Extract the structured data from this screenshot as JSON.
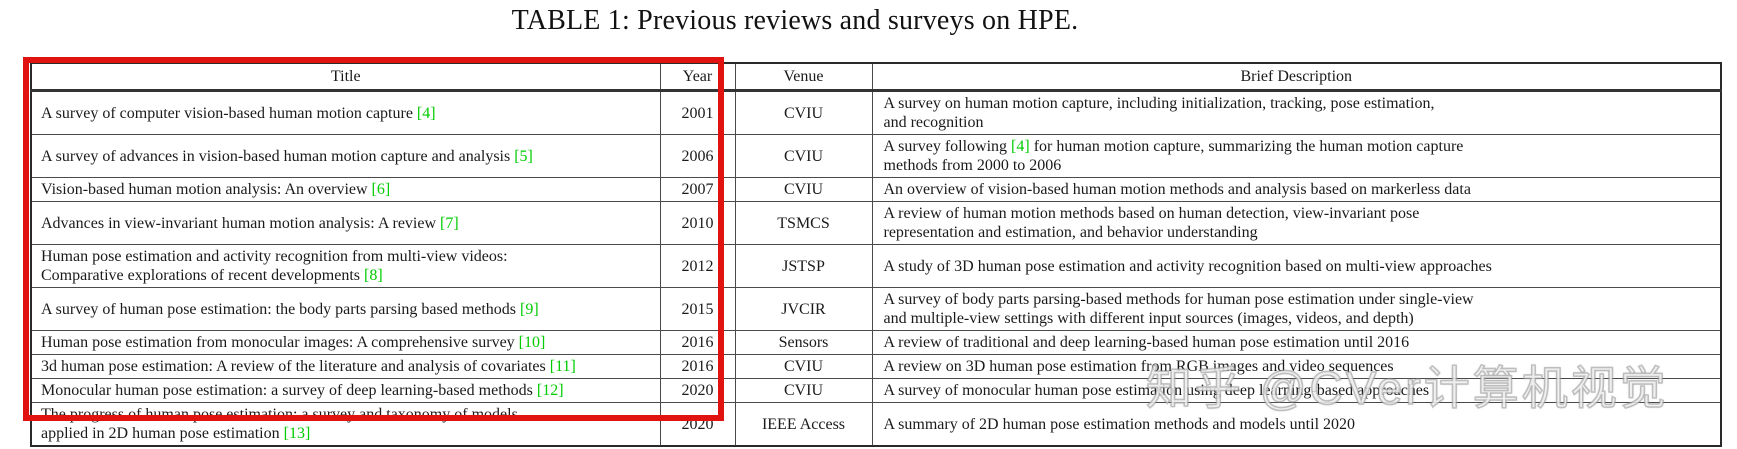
{
  "page": {
    "caption": "TABLE 1: Previous reviews and surveys on HPE.",
    "watermark": "知乎 @CVer计算机视觉"
  },
  "colors": {
    "highlight_box": "#e01310",
    "citation_green": "#00cc00"
  },
  "table": {
    "columns": [
      "Title",
      "Year",
      "Venue",
      "Brief Description"
    ],
    "rows": [
      {
        "title": "A survey of computer vision-based human motion capture [4]",
        "year": "2001",
        "venue": "CVIU",
        "description": "A survey on human motion capture, including initialization, tracking, pose estimation,\nand recognition"
      },
      {
        "title": "A survey of advances in vision-based human motion capture and analysis [5]",
        "year": "2006",
        "venue": "CVIU",
        "description": "A survey following [4] for human motion capture, summarizing the human motion capture\nmethods from 2000 to 2006"
      },
      {
        "title": "Vision-based human motion analysis: An overview [6]",
        "year": "2007",
        "venue": "CVIU",
        "description": "An overview of vision-based human motion methods and analysis based on markerless data"
      },
      {
        "title": "Advances in view-invariant human motion analysis: A review [7]",
        "year": "2010",
        "venue": "TSMCS",
        "description": "A review of human motion methods based on human detection, view-invariant pose\nrepresentation and estimation, and behavior understanding"
      },
      {
        "title": "Human pose estimation and activity recognition from multi-view videos:\nComparative explorations of recent developments [8]",
        "year": "2012",
        "venue": "JSTSP",
        "description": "A study of 3D human pose estimation and activity recognition based on multi-view approaches"
      },
      {
        "title": "A survey of human pose estimation: the body parts parsing based methods [9]",
        "year": "2015",
        "venue": "JVCIR",
        "description": "A survey of body parts parsing-based methods for human pose estimation under single-view\nand multiple-view settings with different input sources (images, videos, and depth)"
      },
      {
        "title": "Human pose estimation from monocular images: A comprehensive survey [10]",
        "year": "2016",
        "venue": "Sensors",
        "description": "A review of traditional and deep learning-based human pose estimation until 2016"
      },
      {
        "title": "3d human pose estimation: A review of the literature and analysis of covariates [11]",
        "year": "2016",
        "venue": "CVIU",
        "description": "A review on 3D human pose estimation from RGB images and video sequences"
      },
      {
        "title": "Monocular human pose estimation: a survey of deep learning-based methods [12]",
        "year": "2020",
        "venue": "CVIU",
        "description": "A survey of monocular human pose estimation using deep learning-based approaches"
      },
      {
        "title": "The progress of human pose estimation: a survey and taxonomy of models\napplied in 2D human pose estimation [13]",
        "year": "2020",
        "venue": "IEEE Access",
        "description": "A summary of 2D human pose estimation methods and models until 2020"
      }
    ]
  }
}
